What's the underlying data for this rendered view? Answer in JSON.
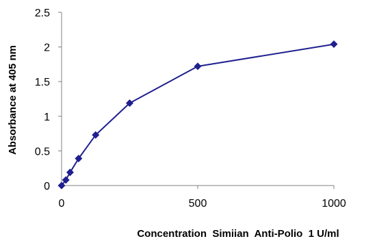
{
  "chart_data": {
    "type": "line",
    "title": "",
    "xlabel": "Concentration  Simiian  Anti-Polio  1 U/ml",
    "ylabel": "Absorbance at 405 nm",
    "xlim": [
      0,
      1000
    ],
    "ylim": [
      0,
      2.5
    ],
    "x_ticks": [
      "0",
      "500",
      "1000"
    ],
    "y_ticks": [
      "0",
      "0.5",
      "1",
      "1.5",
      "2",
      "2.5"
    ],
    "grid": false,
    "legend": "none",
    "series": [
      {
        "color": "#1f1f8f",
        "marker": "diamond",
        "points": [
          {
            "x": 0,
            "y": 0
          },
          {
            "x": 15.6,
            "y": 0.08
          },
          {
            "x": 31.25,
            "y": 0.19
          },
          {
            "x": 62.5,
            "y": 0.39
          },
          {
            "x": 125,
            "y": 0.73
          },
          {
            "x": 250,
            "y": 1.19
          },
          {
            "x": 500,
            "y": 1.72
          },
          {
            "x": 1000,
            "y": 2.04
          }
        ]
      }
    ]
  }
}
